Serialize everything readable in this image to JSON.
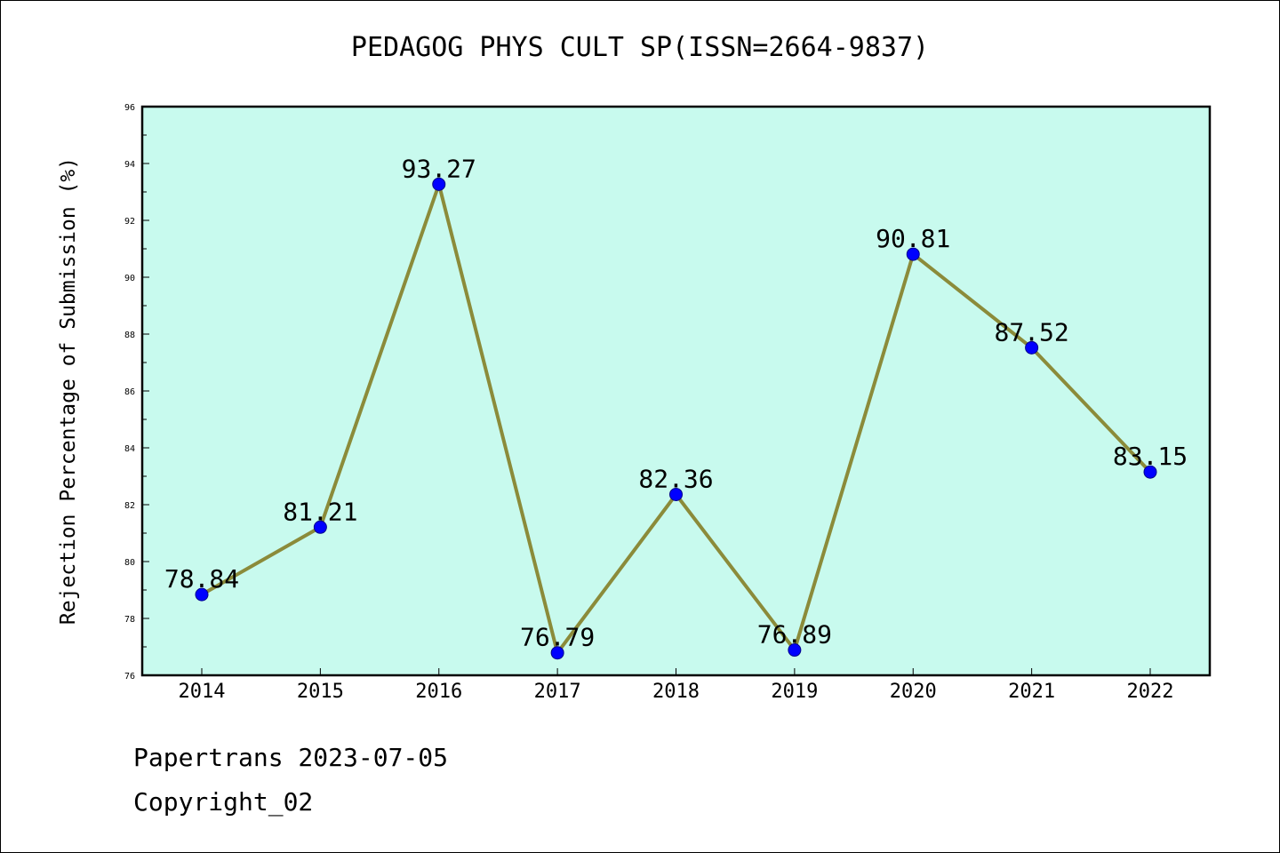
{
  "chart_data": {
    "type": "line",
    "title": "PEDAGOG PHYS CULT SP(ISSN=2664-9837)",
    "ylabel": "Rejection Percentage of Submission (%)",
    "xlabel": "",
    "categories": [
      "2014",
      "2015",
      "2016",
      "2017",
      "2018",
      "2019",
      "2020",
      "2021",
      "2022"
    ],
    "values": [
      78.84,
      81.21,
      93.27,
      76.79,
      82.36,
      76.89,
      90.81,
      87.52,
      83.15
    ],
    "value_labels": [
      "78.84",
      "81.21",
      "93.27",
      "76.79",
      "82.36",
      "76.89",
      "90.81",
      "87.52",
      "83.15"
    ],
    "ylim": [
      76,
      96
    ],
    "yticks": [
      "76",
      "78",
      "80",
      "82",
      "84",
      "86",
      "88",
      "90",
      "92",
      "94",
      "96"
    ],
    "grid": false,
    "colors": {
      "plot_background": "#c8faee",
      "line": "#8b8b3a",
      "marker": "#0000ff"
    }
  },
  "footer": {
    "line1": "Papertrans 2023-07-05",
    "line2": "Copyright_02"
  }
}
